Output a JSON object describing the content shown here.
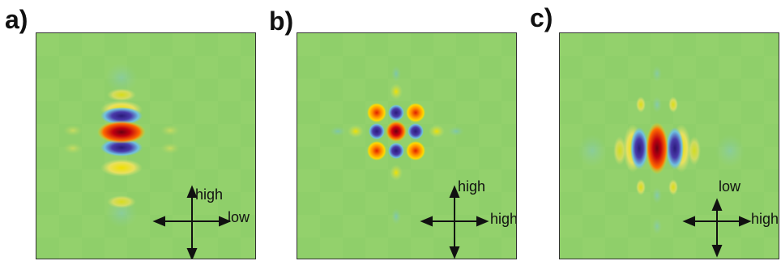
{
  "panels": [
    {
      "label": "a)",
      "vertical_label": "high",
      "horizontal_label": "low"
    },
    {
      "label": "b)",
      "vertical_label": "high",
      "horizontal_label": "high"
    },
    {
      "label": "c)",
      "vertical_label": "low",
      "horizontal_label": "high"
    }
  ],
  "colors": {
    "background": "#8fcf6a",
    "positive_peak": "#b00010",
    "positive_mid": "#ffd400",
    "negative_mid": "#7fc8e0",
    "negative_peak": "#3a2a9a",
    "arrow": "#111111"
  }
}
